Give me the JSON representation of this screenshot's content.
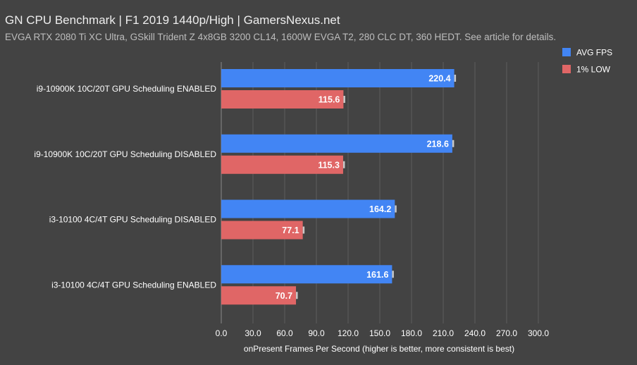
{
  "chart_data": {
    "type": "bar",
    "orientation": "horizontal",
    "title": "GN CPU Benchmark | F1 2019 1440p/High | GamersNexus.net",
    "subtitle": "EVGA RTX 2080 Ti XC Ultra, GSkill Trident Z 4x8GB 3200 CL14, 1600W EVGA T2, 280 CLC DT, 360 HEDT. See article for details.",
    "xlabel": "onPresent Frames Per Second (higher is better, more consistent is best)",
    "ylabel": "",
    "xlim": [
      0,
      300
    ],
    "xticks": [
      0,
      30,
      60,
      90,
      120,
      150,
      180,
      210,
      240,
      270,
      300
    ],
    "xtick_labels": [
      "0.0",
      "30.0",
      "60.0",
      "90.0",
      "120.0",
      "150.0",
      "180.0",
      "210.0",
      "240.0",
      "270.0",
      "300.0"
    ],
    "grid": true,
    "legend_position": "top-right",
    "categories": [
      "i9-10900K 10C/20T GPU Scheduling ENABLED",
      "i9-10900K 10C/20T GPU Scheduling DISABLED",
      "i3-10100 4C/4T GPU Scheduling DISABLED",
      "i3-10100 4C/4T GPU Scheduling ENABLED"
    ],
    "series": [
      {
        "name": "AVG FPS",
        "color": "#4285f4",
        "values": [
          220.4,
          218.6,
          164.2,
          161.6
        ],
        "labels": [
          "220.4",
          "218.6",
          "164.2",
          "161.6"
        ]
      },
      {
        "name": "1% LOW",
        "color": "#e06666",
        "values": [
          115.6,
          115.3,
          77.1,
          70.7
        ],
        "labels": [
          "115.6",
          "115.3",
          "77.1",
          "70.7"
        ]
      }
    ]
  }
}
